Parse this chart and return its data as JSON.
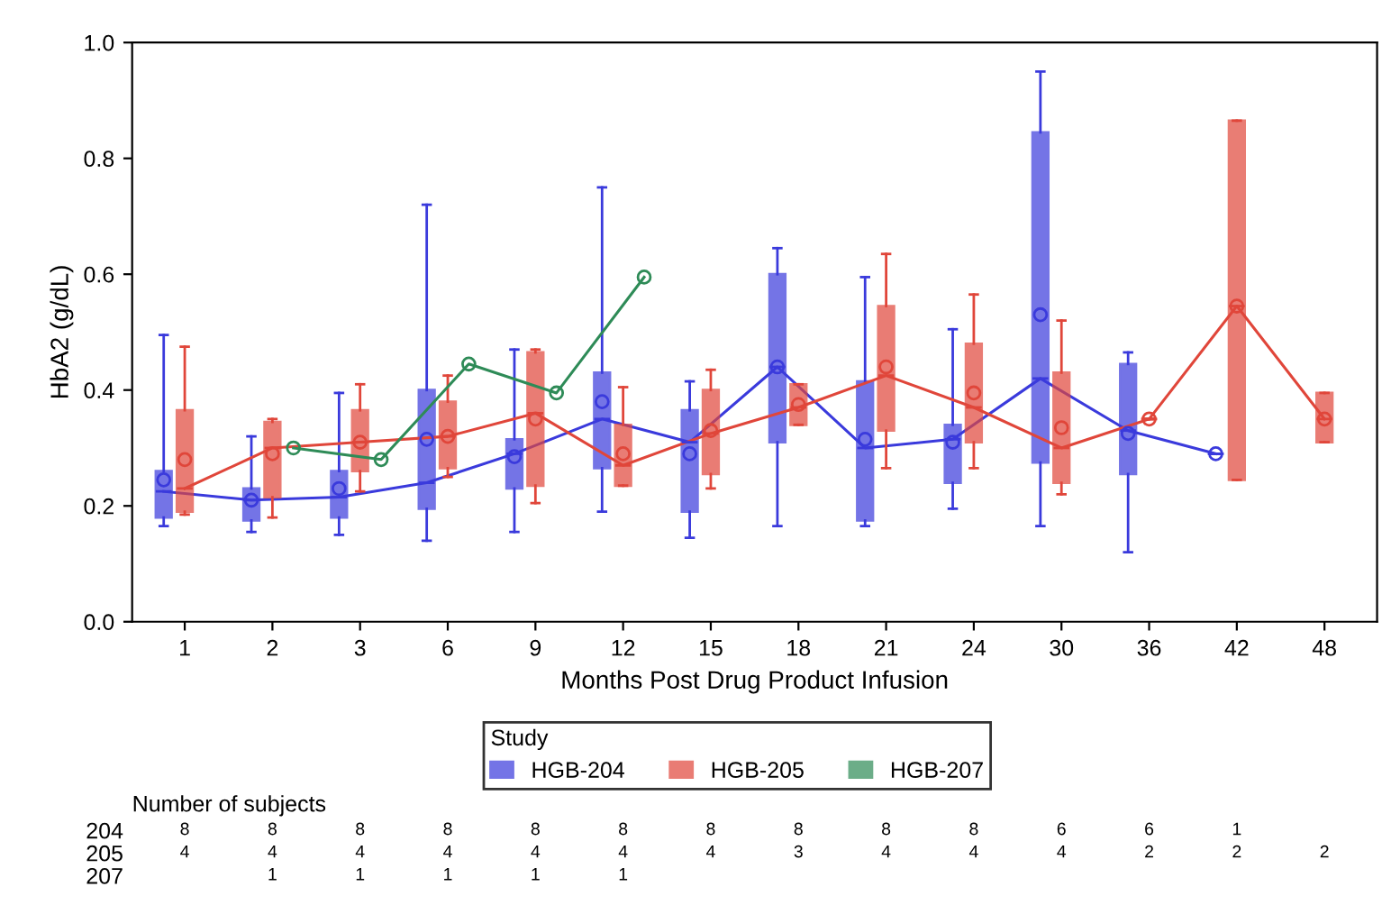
{
  "chart_data": [
    {
      "type": "box",
      "xlabel": "Months Post Drug Product Infusion",
      "ylabel": "HbA2 (g/dL)",
      "legend_title": "Study",
      "legend": "bottom",
      "grid": false,
      "marker": "circle",
      "categories": [
        "1",
        "2",
        "3",
        "6",
        "9",
        "12",
        "15",
        "18",
        "21",
        "24",
        "30",
        "36",
        "42",
        "48"
      ],
      "ylim": [
        0,
        1.0
      ],
      "yticks": [
        {
          "value": 0,
          "label": "0.0"
        },
        {
          "value": 0.2,
          "label": "0.2"
        },
        {
          "value": 0.4,
          "label": "0.4"
        },
        {
          "value": 0.6,
          "label": "0.6"
        },
        {
          "value": 0.8,
          "label": "0.8"
        },
        {
          "value": 1.0,
          "label": "1.0"
        }
      ],
      "series": [
        {
          "name": "HGB-204",
          "color": "#3a3adc",
          "boxes": [
            {
              "low": 0.165,
              "q1": 0.18,
              "median": 0.225,
              "q3": 0.26,
              "high": 0.495,
              "mean": 0.245
            },
            {
              "low": 0.155,
              "q1": 0.175,
              "median": 0.21,
              "q3": 0.23,
              "high": 0.32,
              "mean": 0.21
            },
            {
              "low": 0.15,
              "q1": 0.18,
              "median": 0.215,
              "q3": 0.26,
              "high": 0.395,
              "mean": 0.23
            },
            {
              "low": 0.14,
              "q1": 0.195,
              "median": 0.24,
              "q3": 0.4,
              "high": 0.72,
              "mean": 0.315
            },
            {
              "low": 0.155,
              "q1": 0.23,
              "median": 0.29,
              "q3": 0.315,
              "high": 0.47,
              "mean": 0.285
            },
            {
              "low": 0.19,
              "q1": 0.265,
              "median": 0.35,
              "q3": 0.43,
              "high": 0.75,
              "mean": 0.38
            },
            {
              "low": 0.145,
              "q1": 0.19,
              "median": 0.31,
              "q3": 0.365,
              "high": 0.415,
              "mean": 0.29
            },
            {
              "low": 0.165,
              "q1": 0.31,
              "median": 0.44,
              "q3": 0.6,
              "high": 0.645,
              "mean": 0.44
            },
            {
              "low": 0.165,
              "q1": 0.175,
              "median": 0.3,
              "q3": 0.415,
              "high": 0.595,
              "mean": 0.315
            },
            {
              "low": 0.195,
              "q1": 0.24,
              "median": 0.315,
              "q3": 0.34,
              "high": 0.505,
              "mean": 0.31
            },
            {
              "low": 0.165,
              "q1": 0.275,
              "median": 0.42,
              "q3": 0.845,
              "high": 0.95,
              "mean": 0.53
            },
            {
              "low": 0.12,
              "q1": 0.255,
              "median": 0.33,
              "q3": 0.445,
              "high": 0.465,
              "mean": 0.325
            },
            {
              "low": 0.29,
              "q1": 0.29,
              "median": 0.29,
              "q3": 0.29,
              "high": 0.29,
              "mean": 0.29
            },
            null
          ]
        },
        {
          "type": "line",
          "color": "#3a3adc",
          "marker": "none",
          "values": [
            0.225,
            0.21,
            0.215,
            0.24,
            0.29,
            0.35,
            0.31,
            0.44,
            0.3,
            0.315,
            0.42,
            0.33,
            0.29,
            null
          ]
        },
        {
          "name": "HGB-205",
          "color": "#e0463a",
          "boxes": [
            {
              "low": 0.185,
              "q1": 0.19,
              "median": 0.23,
              "q3": 0.365,
              "high": 0.475,
              "mean": 0.28
            },
            {
              "low": 0.18,
              "q1": 0.215,
              "median": 0.3,
              "q3": 0.345,
              "high": 0.35,
              "mean": 0.29
            },
            {
              "low": 0.225,
              "q1": 0.26,
              "median": 0.31,
              "q3": 0.365,
              "high": 0.41,
              "mean": 0.31
            },
            {
              "low": 0.25,
              "q1": 0.265,
              "median": 0.32,
              "q3": 0.38,
              "high": 0.425,
              "mean": 0.32
            },
            {
              "low": 0.205,
              "q1": 0.235,
              "median": 0.36,
              "q3": 0.465,
              "high": 0.47,
              "mean": 0.35
            },
            {
              "low": 0.235,
              "q1": 0.235,
              "median": 0.27,
              "q3": 0.34,
              "high": 0.405,
              "mean": 0.29
            },
            {
              "low": 0.23,
              "q1": 0.255,
              "median": 0.325,
              "q3": 0.4,
              "high": 0.435,
              "mean": 0.33
            },
            {
              "low": 0.34,
              "q1": 0.34,
              "median": 0.37,
              "q3": 0.41,
              "high": 0.41,
              "mean": 0.375
            },
            {
              "low": 0.265,
              "q1": 0.33,
              "median": 0.425,
              "q3": 0.545,
              "high": 0.635,
              "mean": 0.44
            },
            {
              "low": 0.265,
              "q1": 0.31,
              "median": 0.37,
              "q3": 0.48,
              "high": 0.565,
              "mean": 0.395
            },
            {
              "low": 0.22,
              "q1": 0.24,
              "median": 0.3,
              "q3": 0.43,
              "high": 0.52,
              "mean": 0.335
            },
            {
              "low": 0.35,
              "q1": 0.35,
              "median": 0.35,
              "q3": 0.35,
              "high": 0.35,
              "mean": 0.35
            },
            {
              "low": 0.245,
              "q1": 0.245,
              "median": 0.545,
              "q3": 0.865,
              "high": 0.865,
              "mean": 0.545
            },
            {
              "low": 0.31,
              "q1": 0.31,
              "median": 0.35,
              "q3": 0.395,
              "high": 0.395,
              "mean": 0.35
            }
          ]
        },
        {
          "type": "line",
          "color": "#e0463a",
          "marker": "none",
          "values": [
            0.23,
            0.3,
            0.31,
            0.32,
            0.36,
            0.27,
            0.325,
            0.37,
            0.425,
            0.37,
            0.3,
            0.35,
            0.545,
            0.35
          ]
        },
        {
          "name": "HGB-207",
          "type": "line",
          "color": "#2e8b57",
          "values": [
            null,
            0.3,
            0.28,
            0.445,
            0.395,
            0.595,
            null,
            null,
            null,
            null,
            null,
            null,
            null,
            null
          ]
        }
      ]
    },
    {
      "type": "heatmap",
      "title": "Number of subjects",
      "data_labels": true,
      "tick_labels": "y",
      "categories": [
        "1",
        "2",
        "3",
        "6",
        "9",
        "12",
        "15",
        "18",
        "21",
        "24",
        "30",
        "36",
        "42",
        "48"
      ],
      "y_categories": [
        "204",
        "205",
        "207"
      ],
      "cells": [
        [
          8,
          8,
          8,
          8,
          8,
          8,
          8,
          8,
          8,
          8,
          6,
          6,
          1,
          null
        ],
        [
          4,
          4,
          4,
          4,
          4,
          4,
          4,
          3,
          4,
          4,
          4,
          2,
          2,
          2
        ],
        [
          null,
          1,
          1,
          1,
          1,
          1,
          null,
          null,
          null,
          null,
          null,
          null,
          null,
          null
        ]
      ]
    }
  ]
}
